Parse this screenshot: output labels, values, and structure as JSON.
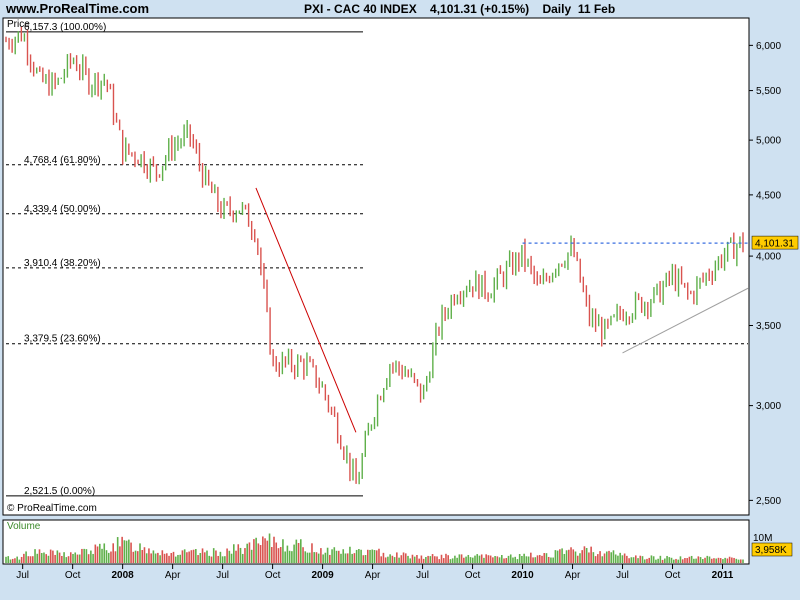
{
  "site": "www.ProRealTime.com",
  "header": {
    "symbol": "PXI - CAC 40 INDEX",
    "last": "4,101.31 (+0.15%)",
    "period": "Daily",
    "date": "11 Feb"
  },
  "watermark": "© ProRealTime.com",
  "price_panel_label": "Price",
  "volume_panel_label": "Volume",
  "last_price_tag": "4,101.31",
  "last_volume_tag": "3,958K",
  "volume_axis_label": "10M",
  "colors": {
    "up": "#5fb04a",
    "down": "#d9534f",
    "fib_line": "#000000",
    "downtrend": "#cc0000",
    "resistance": "#3a6fe0",
    "support_trend": "#a0a0a0",
    "price_tag_bg": "#ffcc00",
    "volume_tag_bg": "#ffcc00"
  },
  "chart_data": {
    "type": "candlestick",
    "title": "PXI - CAC 40 INDEX",
    "ylabel": "Price",
    "yscale": "log",
    "ylim": [
      2440,
      6300
    ],
    "y_ticks": [
      "2,500",
      "3,000",
      "3,500",
      "4,000",
      "4,500",
      "5,000",
      "5,500",
      "6,000"
    ],
    "x_ticks": [
      "Jul",
      "Oct",
      "2008",
      "Apr",
      "Jul",
      "Oct",
      "2009",
      "Apr",
      "Jul",
      "Oct",
      "2010",
      "Apr",
      "Jul",
      "Oct",
      "2011"
    ],
    "fib_levels": [
      {
        "price": 6157.3,
        "label": "6,157.3 (100.00%)",
        "style": "solid"
      },
      {
        "price": 4768.4,
        "label": "4,768.4 (61.80%)",
        "style": "dashed"
      },
      {
        "price": 4339.4,
        "label": "4,339.4 (50.00%)",
        "style": "dashed"
      },
      {
        "price": 3910.4,
        "label": "3,910.4 (38.20%)",
        "style": "dashed"
      },
      {
        "price": 3379.5,
        "label": "3,379.5 (23.60%)",
        "style": "dashed"
      },
      {
        "price": 2521.5,
        "label": "2,521.5 (0.00%)",
        "style": "solid"
      }
    ],
    "price_path": [
      [
        "2007-06",
        6050
      ],
      [
        "2007-07",
        6140
      ],
      [
        "2007-08",
        5600
      ],
      [
        "2007-09",
        5550
      ],
      [
        "2007-10",
        5850
      ],
      [
        "2007-11",
        5600
      ],
      [
        "2007-12",
        5620
      ],
      [
        "2008-01",
        4900
      ],
      [
        "2008-02",
        4850
      ],
      [
        "2008-03",
        4700
      ],
      [
        "2008-04",
        4950
      ],
      [
        "2008-05",
        5050
      ],
      [
        "2008-06",
        4600
      ],
      [
        "2008-07",
        4350
      ],
      [
        "2008-08",
        4400
      ],
      [
        "2008-09",
        4200
      ],
      [
        "2008-10",
        3250
      ],
      [
        "2008-11",
        3250
      ],
      [
        "2008-12",
        3250
      ],
      [
        "2009-01",
        3100
      ],
      [
        "2009-02",
        2850
      ],
      [
        "2009-03",
        2570
      ],
      [
        "2009-04",
        2950
      ],
      [
        "2009-05",
        3250
      ],
      [
        "2009-06",
        3200
      ],
      [
        "2009-07",
        3050
      ],
      [
        "2009-08",
        3500
      ],
      [
        "2009-09",
        3750
      ],
      [
        "2009-10",
        3800
      ],
      [
        "2009-11",
        3750
      ],
      [
        "2009-12",
        3880
      ],
      [
        "2010-01",
        4010
      ],
      [
        "2010-02",
        3750
      ],
      [
        "2010-03",
        3950
      ],
      [
        "2010-04",
        4050
      ],
      [
        "2010-05",
        3550
      ],
      [
        "2010-06",
        3450
      ],
      [
        "2010-07",
        3600
      ],
      [
        "2010-08",
        3650
      ],
      [
        "2010-09",
        3700
      ],
      [
        "2010-10",
        3850
      ],
      [
        "2010-11",
        3700
      ],
      [
        "2010-12",
        3850
      ],
      [
        "2011-01",
        4000
      ],
      [
        "2011-02",
        4101.31
      ]
    ],
    "volume": [
      [
        "2007-07",
        0.25
      ],
      [
        "2007-10",
        0.2
      ],
      [
        "2008-01",
        0.45
      ],
      [
        "2008-04",
        0.22
      ],
      [
        "2008-07",
        0.25
      ],
      [
        "2008-10",
        0.5
      ],
      [
        "2009-01",
        0.3
      ],
      [
        "2009-04",
        0.25
      ],
      [
        "2009-07",
        0.15
      ],
      [
        "2009-10",
        0.15
      ],
      [
        "2010-01",
        0.15
      ],
      [
        "2010-05",
        0.3
      ],
      [
        "2010-08",
        0.13
      ],
      [
        "2010-11",
        0.12
      ],
      [
        "2011-02",
        0.12
      ]
    ],
    "annotations": [
      {
        "type": "trendline",
        "color": "downtrend",
        "from": [
          "2008-09",
          4560
        ],
        "to": [
          "2009-03",
          2850
        ]
      },
      {
        "type": "hline",
        "color": "resistance",
        "price": 4101.31,
        "from": "2010-01"
      },
      {
        "type": "trendline",
        "color": "support_trend",
        "from": [
          "2010-07",
          3320
        ],
        "to": [
          "2011-02",
          3760
        ]
      }
    ]
  }
}
